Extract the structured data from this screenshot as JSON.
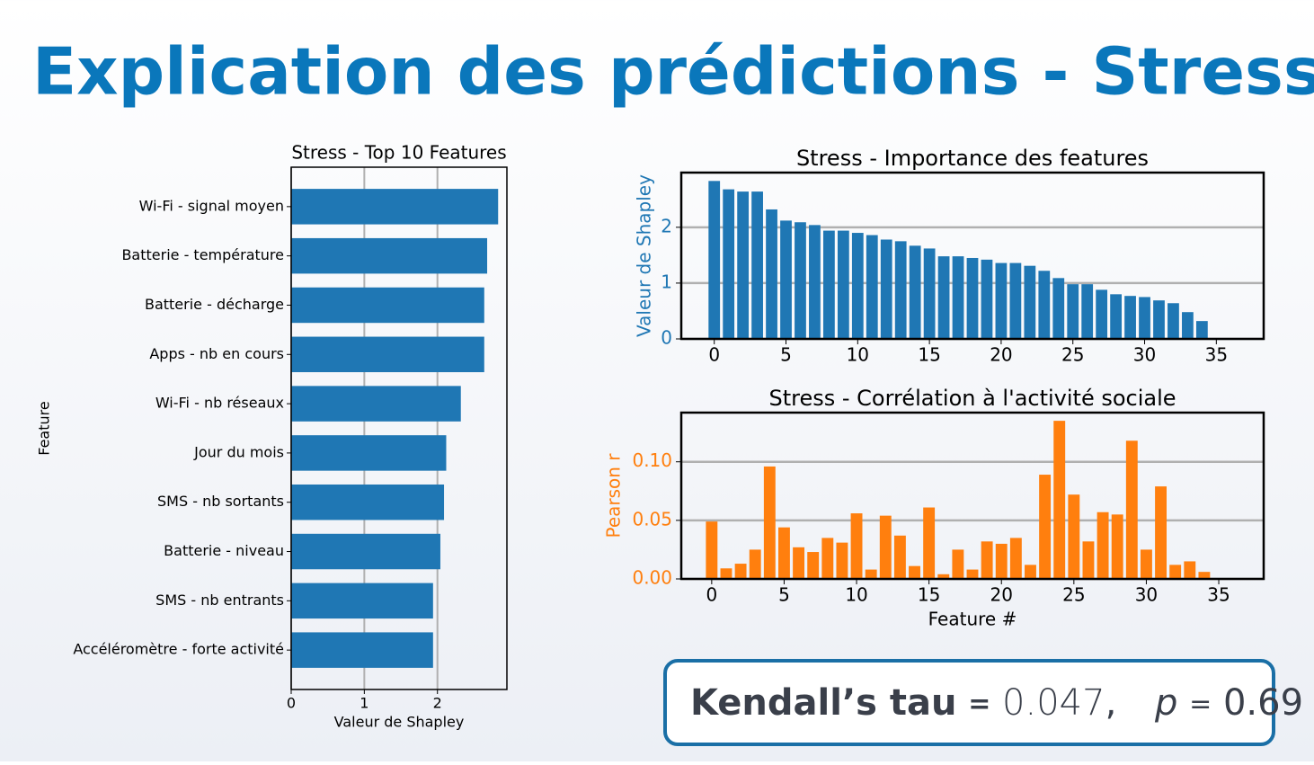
{
  "title": "Explication des prédictions - Stress",
  "chart_data": [
    {
      "type": "barh",
      "title": "Stress - Top 10 Features",
      "xlabel": "Valeur de Shapley",
      "ylabel": "Feature",
      "categories": [
        "Wi-Fi - signal moyen",
        "Batterie - température",
        "Batterie - décharge",
        "Apps - nb en cours",
        "Wi-Fi - nb réseaux",
        "Jour du mois",
        "SMS - nb sortants",
        "Batterie - niveau",
        "SMS - nb entrants",
        "Accéléromètre - forte activité"
      ],
      "values": [
        2.83,
        2.68,
        2.64,
        2.64,
        2.32,
        2.12,
        2.09,
        2.04,
        1.94,
        1.94
      ],
      "color": "#1f77b4",
      "xlim": [
        0,
        2.95
      ],
      "xticks": [
        0,
        1,
        2
      ],
      "grid": "x"
    },
    {
      "type": "bar",
      "title": "Stress - Importance des features",
      "ylabel": "Valeur de Shapley",
      "x": [
        0,
        1,
        2,
        3,
        4,
        5,
        6,
        7,
        8,
        9,
        10,
        11,
        12,
        13,
        14,
        15,
        16,
        17,
        18,
        19,
        20,
        21,
        22,
        23,
        24,
        25,
        26,
        27,
        28,
        29,
        30,
        31,
        32,
        33,
        34
      ],
      "values": [
        2.83,
        2.68,
        2.64,
        2.64,
        2.32,
        2.12,
        2.09,
        2.04,
        1.94,
        1.94,
        1.9,
        1.86,
        1.78,
        1.75,
        1.67,
        1.62,
        1.48,
        1.48,
        1.45,
        1.42,
        1.36,
        1.36,
        1.31,
        1.22,
        1.09,
        0.98,
        0.98,
        0.88,
        0.8,
        0.77,
        0.75,
        0.69,
        0.64,
        0.48,
        0.32
      ],
      "color": "#1f77b4",
      "xlim": [
        -2.3,
        38.3
      ],
      "xticks": [
        0,
        5,
        10,
        15,
        20,
        25,
        30,
        35
      ],
      "ylim": [
        0,
        2.98
      ],
      "yticks": [
        0,
        1,
        2
      ],
      "grid": "y"
    },
    {
      "type": "bar",
      "title": "Stress - Corrélation à l'activité sociale",
      "xlabel": "Feature #",
      "ylabel": "Pearson r",
      "x": [
        0,
        1,
        2,
        3,
        4,
        5,
        6,
        7,
        8,
        9,
        10,
        11,
        12,
        13,
        14,
        15,
        16,
        17,
        18,
        19,
        20,
        21,
        22,
        23,
        24,
        25,
        26,
        27,
        28,
        29,
        30,
        31,
        32,
        33,
        34
      ],
      "values": [
        0.049,
        0.009,
        0.013,
        0.025,
        0.096,
        0.044,
        0.027,
        0.023,
        0.035,
        0.031,
        0.056,
        0.008,
        0.054,
        0.037,
        0.011,
        0.061,
        0.004,
        0.025,
        0.008,
        0.032,
        0.03,
        0.035,
        0.012,
        0.089,
        0.135,
        0.072,
        0.032,
        0.057,
        0.055,
        0.118,
        0.025,
        0.079,
        0.012,
        0.015,
        0.006
      ],
      "color": "#ff7f0e",
      "xlim": [
        -2.1,
        38.1
      ],
      "xticks": [
        0,
        5,
        10,
        15,
        20,
        25,
        30,
        35
      ],
      "ylim": [
        0,
        0.142
      ],
      "yticks": [
        {
          "value": 0,
          "label": "0.00"
        },
        {
          "value": 0.05,
          "label": "0.05"
        },
        {
          "value": 0.1,
          "label": "0.10"
        }
      ],
      "grid": "y"
    }
  ],
  "kendall": {
    "label": "Kendall’s tau",
    "operator": "=",
    "tau": 0.047,
    "separator": ",",
    "p_name": "p",
    "p_operator": "=",
    "p": 0.69
  }
}
